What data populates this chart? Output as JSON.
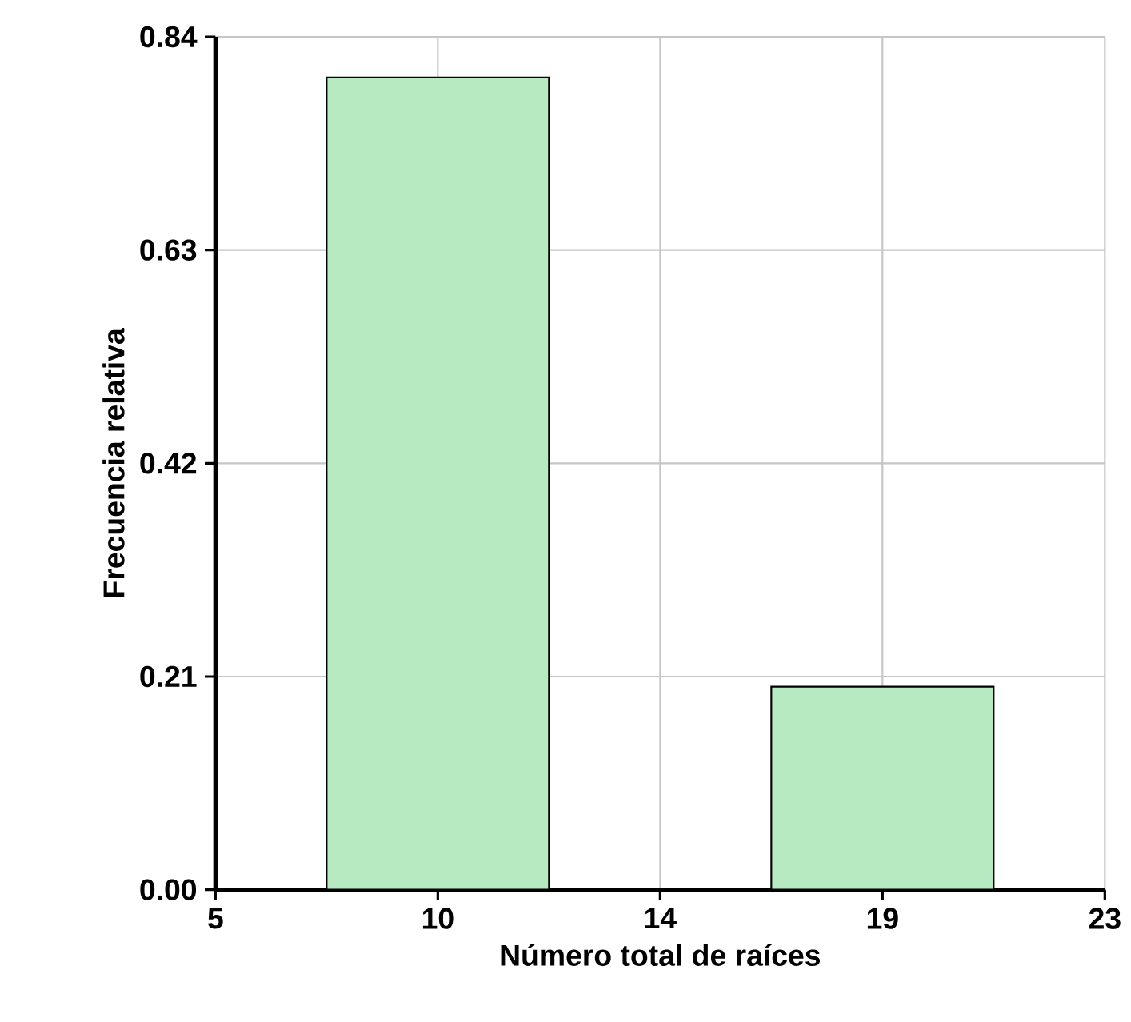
{
  "chart_data": {
    "type": "histogram",
    "xlabel": "Número total de raíces",
    "ylabel": "Frecuencia relativa",
    "bins": [
      7.25,
      11.75,
      16.25,
      20.75
    ],
    "values": [
      0.8,
      0,
      0.2
    ],
    "color": "#b8eac2",
    "xlim": [
      5,
      23
    ],
    "xticks": [
      5,
      {
        "value": 9.5,
        "label": "10"
      },
      14,
      {
        "value": 18.5,
        "label": "19"
      },
      23
    ],
    "ylim": [
      0,
      0.84
    ],
    "yticks": [
      {
        "value": 0,
        "label": "0.00"
      },
      0.21,
      0.42,
      0.63,
      0.84
    ],
    "grid": true
  }
}
